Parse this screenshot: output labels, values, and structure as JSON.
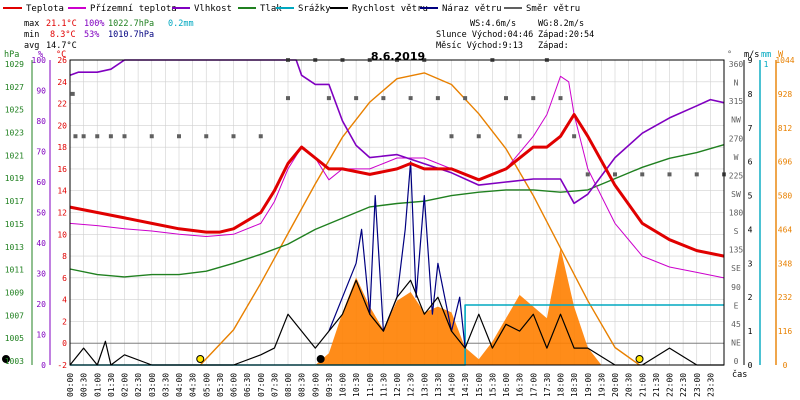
{
  "chart_data": {
    "type": "line",
    "title": "8.6.2019",
    "legend": [
      {
        "name": "Teplota",
        "color": "#e00000"
      },
      {
        "name": "Přízemní teplota",
        "color": "#cc00cc"
      },
      {
        "name": "Vlhkost",
        "color": "#8000c0"
      },
      {
        "name": "Tlak",
        "color": "#208020"
      },
      {
        "name": "Srážky",
        "color": "#00a8c0"
      },
      {
        "name": "Rychlost větru",
        "color": "#000000"
      },
      {
        "name": "Náraz větru",
        "color": "#000080"
      },
      {
        "name": "Směr větru",
        "color": "#606060"
      }
    ],
    "stats": {
      "max": {
        "label": "max",
        "temp": "21.1°C",
        "hum": "100%",
        "press": "1022.7hPa",
        "rain": "0.2mm"
      },
      "min": {
        "label": "min",
        "temp": "8.3°C",
        "hum": "53%",
        "press": "1010.7hPa"
      },
      "avg": {
        "label": "avg",
        "temp": "14.7°C"
      }
    },
    "wind_info": {
      "ws": "WS:4.6m/s",
      "wg": "WG:8.2m/s"
    },
    "sun_moon": {
      "sun": "Slunce Východ:04:46",
      "sun_set": "Západ:20:54",
      "moon": "Měsíc Východ:9:13",
      "moon_set": "Západ:"
    },
    "axes": {
      "left_units": [
        "hPa",
        "%",
        "°C"
      ],
      "right_units": [
        "°",
        "m/s",
        "mm",
        "W"
      ],
      "xlabel": "čas",
      "pressure_ticks": [
        "1029",
        "1027",
        "1025",
        "1023",
        "1021",
        "1019",
        "1017",
        "1015",
        "1013",
        "1011",
        "1009",
        "1007",
        "1005",
        "1003"
      ],
      "humidity_ticks": [
        "100",
        "90",
        "80",
        "70",
        "60",
        "50",
        "40",
        "30",
        "20",
        "10",
        "0"
      ],
      "temp_ticks": [
        "26",
        "24",
        "22",
        "20",
        "18",
        "16",
        "14",
        "12",
        "10",
        "8",
        "6",
        "4",
        "2",
        "0",
        "-2"
      ],
      "dir_ticks": [
        "360",
        "N",
        "315",
        "NW",
        "270",
        "W",
        "225",
        "SW",
        "180",
        "S",
        "135",
        "SE",
        "90",
        "E",
        "45",
        "NE",
        "0"
      ],
      "wind_ticks": [
        "9",
        "8",
        "7",
        "6",
        "5",
        "4",
        "3",
        "2",
        "1",
        "0"
      ],
      "rain_ticks": [
        "1"
      ],
      "solar_ticks": [
        "1044",
        "928",
        "812",
        "696",
        "580",
        "464",
        "348",
        "232",
        "116",
        "0"
      ],
      "time_ticks": [
        "00:00",
        "00:30",
        "01:00",
        "01:30",
        "02:00",
        "02:30",
        "03:00",
        "03:30",
        "04:00",
        "04:30",
        "05:00",
        "05:30",
        "06:00",
        "06:30",
        "07:00",
        "07:30",
        "08:00",
        "08:30",
        "09:00",
        "09:30",
        "10:00",
        "10:30",
        "11:00",
        "11:30",
        "12:00",
        "12:30",
        "13:00",
        "13:30",
        "14:00",
        "14:30",
        "15:00",
        "15:30",
        "16:00",
        "16:30",
        "17:00",
        "17:30",
        "18:00",
        "18:30",
        "19:00",
        "19:30",
        "20:00",
        "20:30",
        "21:00",
        "21:30",
        "22:00",
        "22:30",
        "23:00",
        "23:30"
      ]
    },
    "ranges": {
      "temp": [
        -2,
        26
      ],
      "humidity": [
        0,
        100
      ],
      "pressure": [
        1003,
        1030
      ],
      "wind": [
        0,
        9
      ],
      "solar": [
        0,
        1044
      ],
      "direction": [
        0,
        360
      ],
      "hours": [
        0,
        24
      ]
    },
    "series": [
      {
        "key": "temp",
        "color": "#e00000",
        "x": [
          0,
          1,
          2,
          3,
          4,
          5,
          5.5,
          6,
          7,
          7.5,
          8,
          8.5,
          9,
          9.5,
          10,
          11,
          12,
          12.5,
          13,
          14,
          15,
          16,
          17,
          17.5,
          18,
          18.5,
          19,
          20,
          21,
          22,
          23,
          24
        ],
        "y": [
          12.5,
          12,
          11.5,
          11,
          10.5,
          10.2,
          10.2,
          10.5,
          12,
          14,
          16.5,
          18,
          17,
          16,
          16,
          15.5,
          16,
          16.5,
          16,
          16,
          15,
          16,
          18,
          18,
          19,
          21,
          19,
          14.5,
          11,
          9.5,
          8.5,
          8
        ]
      },
      {
        "key": "ground_temp",
        "color": "#cc00cc",
        "x": [
          0,
          1,
          2,
          3,
          4,
          5,
          6,
          7,
          7.5,
          8,
          8.5,
          9,
          9.5,
          10,
          11,
          12,
          13,
          14,
          15,
          16,
          17,
          17.5,
          18,
          18.3,
          18.5,
          19,
          20,
          21,
          22,
          23,
          24
        ],
        "y": [
          11,
          10.8,
          10.5,
          10.3,
          10,
          9.8,
          10,
          11,
          13,
          16,
          18,
          17,
          15,
          16,
          16,
          17,
          17,
          16,
          15,
          16,
          19,
          21,
          24.5,
          24,
          21,
          16,
          11,
          8,
          7,
          6.5,
          6
        ]
      },
      {
        "key": "humidity",
        "color": "#8000c0",
        "x": [
          0,
          0.3,
          1,
          1.5,
          2,
          8.3,
          8.5,
          9,
          9.5,
          10,
          10.5,
          11,
          12,
          13,
          14,
          15,
          16,
          17,
          18,
          18.5,
          19,
          20,
          21,
          22,
          23,
          23.5,
          24
        ],
        "y": [
          95,
          96,
          96,
          97,
          100,
          100,
          95,
          92,
          92,
          80,
          72,
          68,
          69,
          66,
          63,
          59,
          60,
          61,
          61,
          53,
          56,
          68,
          76,
          81,
          85,
          87,
          86
        ]
      },
      {
        "key": "pressure",
        "color": "#208020",
        "x": [
          0,
          1,
          2,
          3,
          4,
          5,
          6,
          7,
          8,
          9,
          10,
          11,
          12,
          13,
          14,
          15,
          16,
          17,
          18,
          19,
          20,
          21,
          22,
          23,
          24
        ],
        "y": [
          1011.5,
          1011,
          1010.8,
          1011,
          1011,
          1011.3,
          1012,
          1012.8,
          1013.7,
          1015,
          1016,
          1017,
          1017.3,
          1017.5,
          1018,
          1018.3,
          1018.5,
          1018.5,
          1018.3,
          1018.5,
          1019.5,
          1020.5,
          1021.3,
          1021.8,
          1022.5
        ]
      },
      {
        "key": "wind_speed",
        "color": "#000000",
        "x": [
          0,
          0.5,
          1,
          1.3,
          1.5,
          2,
          3,
          4,
          5,
          6,
          7,
          7.5,
          8,
          8.5,
          9,
          9.5,
          10,
          10.5,
          11,
          11.5,
          12,
          12.5,
          13,
          13.5,
          14,
          14.5,
          15,
          15.5,
          16,
          16.5,
          17,
          17.5,
          18,
          18.5,
          19,
          20,
          21,
          22,
          23,
          24
        ],
        "y": [
          0,
          0.5,
          0,
          0.7,
          0,
          0.3,
          0,
          0,
          0,
          0,
          0.3,
          0.5,
          1.5,
          1,
          0.5,
          1,
          1.5,
          2.5,
          1.5,
          1,
          2,
          2.5,
          1.5,
          2,
          1,
          0.5,
          1.5,
          0.5,
          1.2,
          1,
          1.5,
          0.5,
          1.5,
          0.5,
          0.5,
          0,
          0,
          0.5,
          0,
          0
        ]
      },
      {
        "key": "wind_gust",
        "color": "#000080",
        "x": [
          9.5,
          10,
          10.5,
          10.7,
          11,
          11.2,
          11.5,
          12,
          12.3,
          12.5,
          12.7,
          13,
          13.3,
          13.5,
          14,
          14.3,
          14.5
        ],
        "y": [
          1,
          2,
          3,
          4,
          1.5,
          5,
          1,
          2,
          4,
          6,
          2,
          5,
          1.5,
          3,
          1,
          2,
          0.5
        ]
      },
      {
        "key": "solar",
        "color": "#e88000",
        "x": [
          4.78,
          6,
          7,
          8,
          9,
          10,
          11,
          12,
          13,
          14,
          15,
          16,
          17,
          18,
          19,
          20,
          20.9
        ],
        "y": [
          0,
          120,
          280,
          450,
          620,
          780,
          900,
          980,
          1000,
          960,
          860,
          740,
          580,
          400,
          220,
          60,
          0
        ]
      },
      {
        "key": "solar_measured",
        "color": "#ff8000",
        "x": [
          9,
          9.5,
          10,
          10.5,
          11,
          11.5,
          12,
          12.5,
          13,
          13.5,
          14,
          14.5,
          15,
          15.5,
          16,
          16.5,
          17,
          17.5,
          18,
          18.5,
          19,
          19.5
        ],
        "y": [
          0,
          40,
          180,
          300,
          200,
          120,
          220,
          250,
          180,
          200,
          180,
          60,
          20,
          80,
          160,
          240,
          200,
          160,
          400,
          200,
          60,
          0
        ]
      },
      {
        "key": "rain",
        "color": "#00a8c0",
        "x": [
          0,
          14.5,
          14.5,
          24
        ],
        "y": [
          0,
          0,
          0.2,
          0.2
        ]
      }
    ],
    "wind_direction_points": [
      {
        "h": 0.1,
        "d": 320
      },
      {
        "h": 0.2,
        "d": 270
      },
      {
        "h": 0.5,
        "d": 270
      },
      {
        "h": 1,
        "d": 270
      },
      {
        "h": 1.5,
        "d": 270
      },
      {
        "h": 2,
        "d": 270
      },
      {
        "h": 3,
        "d": 270
      },
      {
        "h": 4,
        "d": 270
      },
      {
        "h": 5,
        "d": 270
      },
      {
        "h": 6,
        "d": 270
      },
      {
        "h": 7,
        "d": 270
      },
      {
        "h": 8,
        "d": 315
      },
      {
        "h": 8,
        "d": 360
      },
      {
        "h": 9,
        "d": 360
      },
      {
        "h": 9.5,
        "d": 315
      },
      {
        "h": 10,
        "d": 360
      },
      {
        "h": 10.5,
        "d": 315
      },
      {
        "h": 11,
        "d": 360
      },
      {
        "h": 11.5,
        "d": 315
      },
      {
        "h": 12,
        "d": 360
      },
      {
        "h": 12.5,
        "d": 315
      },
      {
        "h": 13,
        "d": 360
      },
      {
        "h": 13.5,
        "d": 315
      },
      {
        "h": 14,
        "d": 270
      },
      {
        "h": 14.5,
        "d": 315
      },
      {
        "h": 15,
        "d": 270
      },
      {
        "h": 15.5,
        "d": 360
      },
      {
        "h": 16,
        "d": 315
      },
      {
        "h": 16.5,
        "d": 270
      },
      {
        "h": 17,
        "d": 315
      },
      {
        "h": 17.5,
        "d": 360
      },
      {
        "h": 18,
        "d": 315
      },
      {
        "h": 18.5,
        "d": 270
      },
      {
        "h": 19,
        "d": 225
      },
      {
        "h": 20,
        "d": 225
      },
      {
        "h": 21,
        "d": 225
      },
      {
        "h": 22,
        "d": 225
      },
      {
        "h": 23,
        "d": 225
      },
      {
        "h": 24,
        "d": 225
      }
    ],
    "markers": [
      {
        "type": "sunrise",
        "h": 4.78,
        "color": "#ffe600"
      },
      {
        "type": "sunset",
        "h": 20.9,
        "color": "#ffe600"
      },
      {
        "type": "moonrise",
        "h": 9.2,
        "color": "#000000"
      },
      {
        "type": "moon_left",
        "h": 0,
        "color": "#000000"
      }
    ],
    "grid": true
  }
}
